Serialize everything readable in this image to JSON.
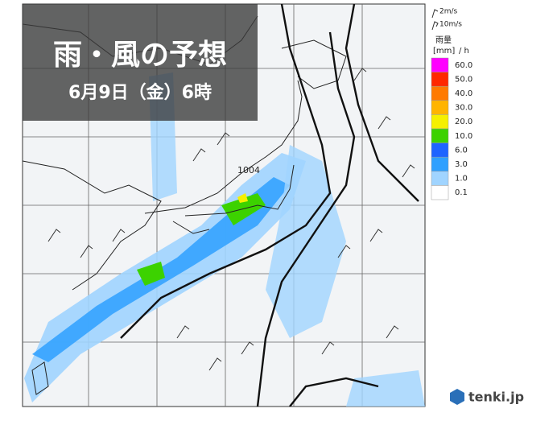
{
  "header": {
    "title": "雨・風の予想",
    "datetime": "6月9日（金）6時"
  },
  "wind_legend": [
    "2m/s",
    "10m/s"
  ],
  "rain_legend": {
    "title": "雨量",
    "unit": "[mm]",
    "per": "/ h",
    "levels": [
      {
        "label": "60.0",
        "color": "#ff00ff"
      },
      {
        "label": "50.0",
        "color": "#ff2800"
      },
      {
        "label": "40.0",
        "color": "#ff7a00"
      },
      {
        "label": "30.0",
        "color": "#ffb400"
      },
      {
        "label": "20.0",
        "color": "#f5f000"
      },
      {
        "label": "10.0",
        "color": "#3cd200"
      },
      {
        "label": "6.0",
        "color": "#1e64ff"
      },
      {
        "label": "3.0",
        "color": "#2ea0ff"
      },
      {
        "label": "1.0",
        "color": "#a0d4ff"
      },
      {
        "label": "0.1",
        "color": "#ffffff"
      }
    ]
  },
  "map": {
    "isobar_label": "1004"
  },
  "logo": "tenki.jp"
}
